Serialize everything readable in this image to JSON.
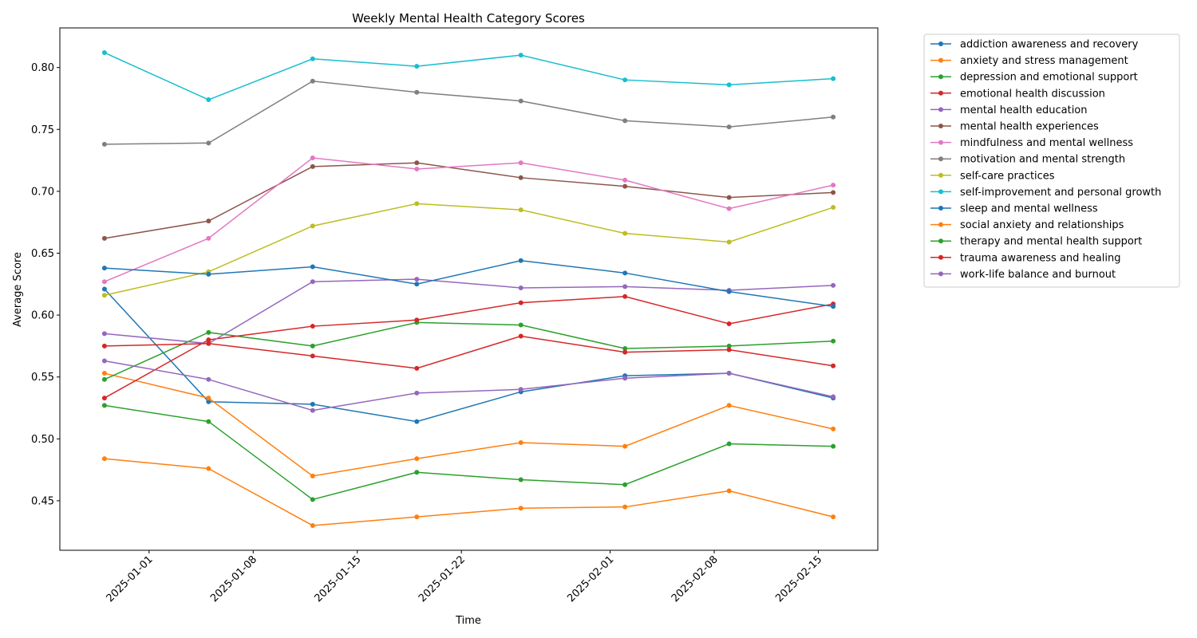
{
  "chart_data": {
    "type": "line",
    "title": "Weekly Mental Health Category Scores",
    "xlabel": "Time",
    "ylabel": "Average Score",
    "x": [
      "2024-12-29",
      "2025-01-05",
      "2025-01-12",
      "2025-01-19",
      "2025-01-26",
      "2025-02-02",
      "2025-02-09",
      "2025-02-16"
    ],
    "x_ticks": [
      "2025-01-01",
      "2025-01-08",
      "2025-01-15",
      "2025-01-22",
      "2025-02-01",
      "2025-02-08",
      "2025-02-15"
    ],
    "xlim": [
      "2024-12-26",
      "2025-02-19"
    ],
    "ylim": [
      0.41,
      0.832
    ],
    "y_ticks": [
      "0.45",
      "0.50",
      "0.55",
      "0.60",
      "0.65",
      "0.70",
      "0.75",
      "0.80"
    ],
    "grid": false,
    "legend_position": "outside-right",
    "series": [
      {
        "name": "addiction awareness and recovery",
        "color": "#1f77b4",
        "values": [
          0.621,
          0.53,
          0.528,
          0.514,
          0.538,
          0.551,
          0.553,
          0.533
        ]
      },
      {
        "name": "anxiety and stress management",
        "color": "#ff7f0e",
        "values": [
          0.553,
          0.533,
          0.47,
          0.484,
          0.497,
          0.494,
          0.527,
          0.508
        ]
      },
      {
        "name": "depression and emotional support",
        "color": "#2ca02c",
        "values": [
          0.548,
          0.586,
          0.575,
          0.594,
          0.592,
          0.573,
          0.575,
          0.579
        ]
      },
      {
        "name": "emotional health discussion",
        "color": "#d62728",
        "values": [
          0.533,
          0.58,
          0.591,
          0.596,
          0.61,
          0.615,
          0.593,
          0.609
        ]
      },
      {
        "name": "mental health education",
        "color": "#9467bd",
        "values": [
          0.585,
          0.577,
          0.627,
          0.629,
          0.622,
          0.623,
          0.62,
          0.624
        ]
      },
      {
        "name": "mental health experiences",
        "color": "#8c564b",
        "values": [
          0.662,
          0.676,
          0.72,
          0.723,
          0.711,
          0.704,
          0.695,
          0.699
        ]
      },
      {
        "name": "mindfulness and mental wellness",
        "color": "#e377c2",
        "values": [
          0.627,
          0.662,
          0.727,
          0.718,
          0.723,
          0.709,
          0.686,
          0.705
        ]
      },
      {
        "name": "motivation and mental strength",
        "color": "#7f7f7f",
        "values": [
          0.738,
          0.739,
          0.789,
          0.78,
          0.773,
          0.757,
          0.752,
          0.76
        ]
      },
      {
        "name": "self-care practices",
        "color": "#bcbd22",
        "values": [
          0.616,
          0.635,
          0.672,
          0.69,
          0.685,
          0.666,
          0.659,
          0.687
        ]
      },
      {
        "name": "self-improvement and personal growth",
        "color": "#17becf",
        "values": [
          0.812,
          0.774,
          0.807,
          0.801,
          0.81,
          0.79,
          0.786,
          0.791
        ]
      },
      {
        "name": "sleep and mental wellness",
        "color": "#1f77b4",
        "values": [
          0.638,
          0.633,
          0.639,
          0.625,
          0.644,
          0.634,
          0.619,
          0.607
        ]
      },
      {
        "name": "social anxiety and relationships",
        "color": "#ff7f0e",
        "values": [
          0.484,
          0.476,
          0.43,
          0.437,
          0.444,
          0.445,
          0.458,
          0.437
        ]
      },
      {
        "name": "therapy and mental health support",
        "color": "#2ca02c",
        "values": [
          0.527,
          0.514,
          0.451,
          0.473,
          0.467,
          0.463,
          0.496,
          0.494
        ]
      },
      {
        "name": "trauma awareness and healing",
        "color": "#d62728",
        "values": [
          0.575,
          0.577,
          0.567,
          0.557,
          0.583,
          0.57,
          0.572,
          0.559
        ]
      },
      {
        "name": "work-life balance and burnout",
        "color": "#9467bd",
        "values": [
          0.563,
          0.548,
          0.523,
          0.537,
          0.54,
          0.549,
          0.553,
          0.534
        ]
      }
    ]
  }
}
